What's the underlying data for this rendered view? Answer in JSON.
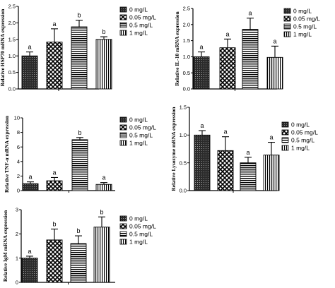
{
  "legend_labels": [
    "0 mg/L",
    "0.05 mg/L",
    "0.5 mg/L",
    "1 mg/L"
  ],
  "chart_data": [
    {
      "type": "bar",
      "ylabel": "Relative HSP70 mRNA expression",
      "categories": [
        "0 mg/L",
        "0.05 mg/L",
        "0.5 mg/L",
        "1 mg/L"
      ],
      "values": [
        1.0,
        1.42,
        1.88,
        1.5
      ],
      "errors": [
        0.12,
        0.4,
        0.2,
        0.08
      ],
      "letters": [
        "a",
        "a",
        "b",
        "b"
      ],
      "ylim": [
        0,
        2.5
      ],
      "yticks": [
        "0.0",
        "0.5",
        "1.0",
        "1.5",
        "2.0",
        "2.5"
      ]
    },
    {
      "type": "bar",
      "ylabel": "Relative IL-10 mRNA expression",
      "categories": [
        "0 mg/L",
        "0.05 mg/L",
        "0.5 mg/L",
        "1 mg/L"
      ],
      "values": [
        1.0,
        1.28,
        1.85,
        0.98
      ],
      "errors": [
        0.15,
        0.27,
        0.35,
        0.35
      ],
      "letters": [
        "a",
        "a",
        "a",
        "a"
      ],
      "ylim": [
        0,
        2.5
      ],
      "yticks": [
        "0.0",
        "0.5",
        "1.0",
        "1.5",
        "2.0",
        "2.5"
      ]
    },
    {
      "type": "bar",
      "ylabel": "Relative TNF-α mRNA expression",
      "categories": [
        "0 mg/L",
        "0.05 mg/L",
        "0.5 mg/L",
        "1 mg/L"
      ],
      "values": [
        0.95,
        1.35,
        7.0,
        0.85
      ],
      "errors": [
        0.25,
        0.45,
        0.3,
        0.25
      ],
      "letters": [
        "a",
        "a",
        "b",
        "a"
      ],
      "ylim": [
        0,
        10
      ],
      "yticks": [
        "0",
        "2",
        "4",
        "6",
        "8",
        "10"
      ]
    },
    {
      "type": "bar",
      "ylabel": "Relative Lysozyme mRNA expression",
      "categories": [
        "0 mg/L",
        "0.05 mg/L",
        "0.5 mg/L",
        "1 mg/L"
      ],
      "values": [
        1.0,
        0.72,
        0.5,
        0.64
      ],
      "errors": [
        0.08,
        0.25,
        0.1,
        0.23
      ],
      "letters": [
        "a",
        "a",
        "a",
        "a"
      ],
      "ylim": [
        0,
        1.5
      ],
      "yticks": [
        "0.0",
        "0.5",
        "1.0",
        "1.5"
      ]
    },
    {
      "type": "bar",
      "ylabel": "Relative IgM mRNA expression",
      "categories": [
        "0 mg/L",
        "0.05 mg/L",
        "0.5 mg/L",
        "1 mg/L"
      ],
      "values": [
        1.0,
        1.75,
        1.6,
        2.28
      ],
      "errors": [
        0.08,
        0.45,
        0.32,
        0.42
      ],
      "letters": [
        "a",
        "b",
        "b",
        "b"
      ],
      "ylim": [
        0,
        3
      ],
      "yticks": [
        "0",
        "1",
        "2",
        "3"
      ]
    }
  ]
}
